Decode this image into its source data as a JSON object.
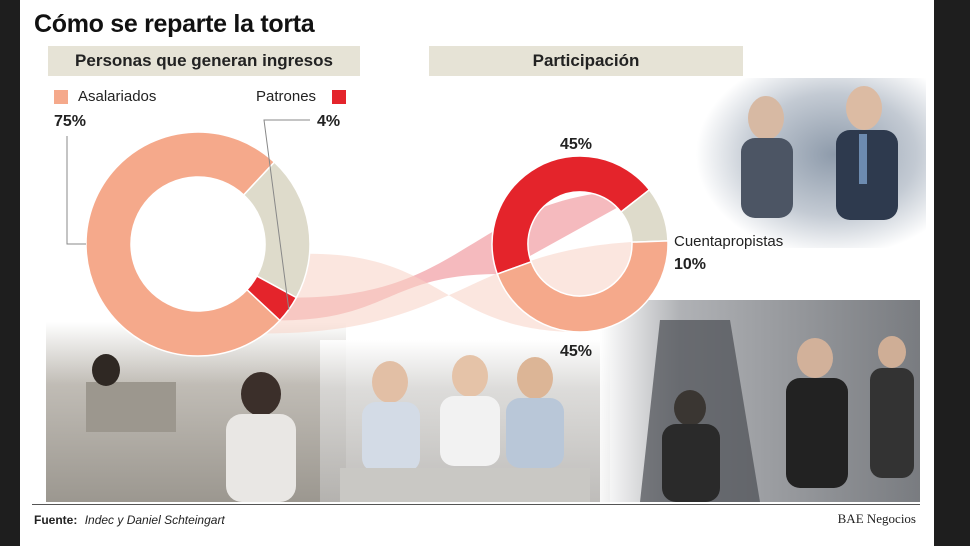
{
  "header": {
    "title": "Cómo se reparte la torta"
  },
  "sections": {
    "left_title": "Personas que generan ingresos",
    "right_title": "Participación"
  },
  "chart_data": [
    {
      "type": "pie",
      "title": "Personas que generan ingresos",
      "categories": [
        "Asalariados",
        "Cuentapropistas",
        "Patrones"
      ],
      "values": [
        75,
        21,
        4
      ],
      "colors": [
        "#f5a98b",
        "#dedbcb",
        "#e4242b"
      ],
      "labels": {
        "asalariados": "Asalariados",
        "asalariados_pct": "75%",
        "patrones": "Patrones",
        "patrones_pct": "4%"
      }
    },
    {
      "type": "pie",
      "title": "Participación",
      "categories": [
        "Patrones",
        "Cuentapropistas",
        "Asalariados"
      ],
      "values": [
        45,
        10,
        45
      ],
      "colors": [
        "#e4242b",
        "#dedbcb",
        "#f5a98b"
      ],
      "labels": {
        "patrones_pct": "45%",
        "cuentapropistas": "Cuentapropistas",
        "cuentapropistas_pct": "10%",
        "asalariados_pct": "45%"
      }
    }
  ],
  "footer": {
    "source_label": "Fuente:",
    "source_text": "Indec y Daniel Schteingart",
    "brand": "BAE Negocios"
  }
}
